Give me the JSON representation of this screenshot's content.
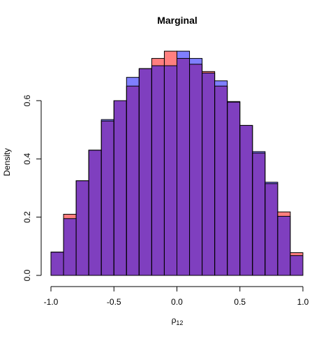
{
  "chart_data": {
    "type": "bar",
    "title": "Marginal",
    "xlabel": "ρ",
    "xlabel_subscript": "12",
    "ylabel": "Density",
    "xlim": [
      -1.0,
      1.0
    ],
    "ylim": [
      0,
      0.78
    ],
    "x_ticks": [
      -1.0,
      -0.5,
      0.0,
      0.5,
      1.0
    ],
    "x_tick_labels": [
      "-1.0",
      "-0.5",
      "0.0",
      "0.5",
      "1.0"
    ],
    "y_ticks": [
      0.0,
      0.2,
      0.4,
      0.6
    ],
    "y_tick_labels": [
      "0.0",
      "0.2",
      "0.4",
      "0.6"
    ],
    "grid": false,
    "bin_edges": [
      -1.0,
      -0.9,
      -0.8,
      -0.7,
      -0.6,
      -0.5,
      -0.4,
      -0.3,
      -0.2,
      -0.1,
      0.0,
      0.1,
      0.2,
      0.3,
      0.4,
      0.5,
      0.6,
      0.7,
      0.8,
      0.9,
      1.0
    ],
    "series": [
      {
        "color": "#ff7f7f",
        "overlap_color": "#7f3fbf",
        "values": [
          0.08,
          0.21,
          0.325,
          0.43,
          0.53,
          0.6,
          0.65,
          0.71,
          0.745,
          0.77,
          0.745,
          0.725,
          0.7,
          0.65,
          0.595,
          0.515,
          0.42,
          0.315,
          0.218,
          0.078
        ]
      },
      {
        "color": "#7f7fff",
        "overlap_color": "#7f3fbf",
        "values": [
          0.08,
          0.195,
          0.325,
          0.43,
          0.535,
          0.6,
          0.68,
          0.71,
          0.72,
          0.72,
          0.77,
          0.745,
          0.695,
          0.668,
          0.597,
          0.515,
          0.425,
          0.32,
          0.203,
          0.068
        ]
      }
    ]
  }
}
